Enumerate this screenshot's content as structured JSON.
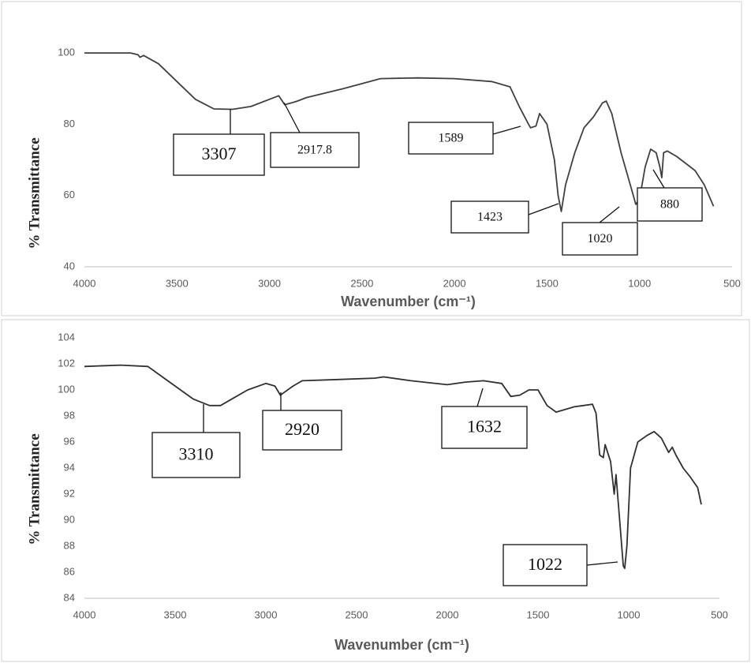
{
  "chart_data": [
    {
      "type": "line",
      "x_label": "Wavenumber (cm⁻¹)",
      "y_label": "% Transmittance",
      "xlim": [
        4000,
        500
      ],
      "ylim": [
        40,
        110
      ],
      "xticks": [
        4000,
        3500,
        3000,
        2500,
        2000,
        1500,
        1000,
        500
      ],
      "yticks": [
        40,
        60,
        80,
        100
      ],
      "grid": false,
      "series": [
        {
          "color": "#404040",
          "x": [
            4000,
            3750,
            3710,
            3700,
            3680,
            3600,
            3500,
            3400,
            3300,
            3200,
            3100,
            3000,
            2950,
            2917.8,
            2880,
            2850,
            2800,
            2600,
            2400,
            2200,
            2000,
            1800,
            1700,
            1650,
            1600,
            1589,
            1560,
            1540,
            1500,
            1460,
            1440,
            1423,
            1400,
            1350,
            1300,
            1250,
            1200,
            1180,
            1150,
            1100,
            1050,
            1020,
            1000,
            970,
            940,
            910,
            890,
            880,
            870,
            850,
            800,
            750,
            700,
            650,
            600
          ],
          "values": [
            100,
            100,
            99.5,
            98.8,
            99.3,
            97,
            92,
            87,
            84.3,
            84.2,
            85,
            87,
            88,
            85.5,
            86,
            86.5,
            87.5,
            90,
            92.8,
            93,
            92.8,
            92,
            90.5,
            85,
            80,
            79,
            79.5,
            83,
            80,
            70,
            60,
            55.5,
            63,
            72,
            79,
            82,
            86,
            86.5,
            83,
            72,
            63,
            57.5,
            59,
            68,
            73,
            72,
            68,
            65,
            72,
            72.5,
            71,
            69,
            67,
            63,
            57
          ]
        }
      ],
      "annotations": [
        "3307",
        "2917.8",
        "1589",
        "1423",
        "1020",
        "880"
      ]
    },
    {
      "type": "line",
      "x_label": "Wavenumber (cm⁻¹)",
      "y_label": "% Transmittance",
      "xlim": [
        4000,
        500
      ],
      "ylim": [
        84,
        104
      ],
      "xticks": [
        4000,
        3500,
        3000,
        2500,
        2000,
        1500,
        1000,
        500
      ],
      "yticks": [
        84,
        86,
        88,
        90,
        92,
        94,
        96,
        98,
        100,
        102,
        104
      ],
      "grid": false,
      "series": [
        {
          "color": "#303030",
          "x": [
            4000,
            3800,
            3650,
            3600,
            3500,
            3400,
            3310,
            3250,
            3200,
            3100,
            3000,
            2950,
            2920,
            2900,
            2850,
            2800,
            2600,
            2400,
            2350,
            2200,
            2000,
            1900,
            1800,
            1700,
            1650,
            1600,
            1550,
            1500,
            1450,
            1400,
            1350,
            1300,
            1250,
            1200,
            1180,
            1160,
            1140,
            1130,
            1100,
            1080,
            1070,
            1050,
            1030,
            1022,
            1010,
            990,
            950,
            900,
            860,
            820,
            780,
            760,
            740,
            700,
            660,
            620,
            600
          ],
          "values": [
            101.8,
            101.9,
            101.8,
            101.3,
            100.3,
            99.3,
            98.8,
            98.8,
            99.2,
            100,
            100.5,
            100.3,
            99.6,
            99.8,
            100.3,
            100.7,
            100.8,
            100.9,
            101,
            100.7,
            100.4,
            100.6,
            100.7,
            100.5,
            99.5,
            99.6,
            100,
            100,
            98.8,
            98.3,
            98.5,
            98.7,
            98.8,
            98.9,
            98.2,
            95,
            94.8,
            95.8,
            94.5,
            92,
            93.5,
            90,
            86.5,
            86.3,
            88,
            94,
            96,
            96.5,
            96.8,
            96.3,
            95.2,
            95.6,
            95,
            94,
            93.3,
            92.5,
            91.2
          ]
        }
      ],
      "annotations": [
        "3310",
        "2920",
        "1632",
        "1022"
      ]
    }
  ]
}
